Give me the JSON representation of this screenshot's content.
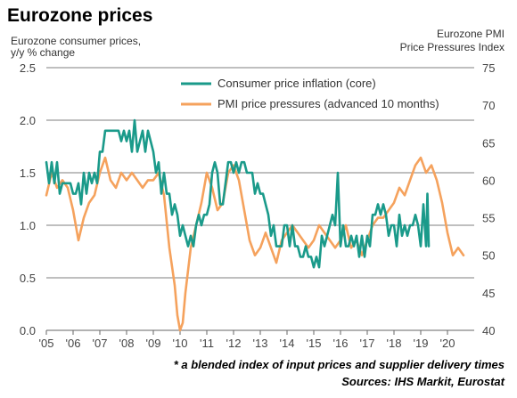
{
  "chart_data": {
    "type": "line",
    "title": "Eurozone prices",
    "left_axis_label": [
      "Eurozone consumer prices,",
      "y/y % change"
    ],
    "right_axis_label": [
      "Eurozone PMI",
      "Price Pressures Index"
    ],
    "left_ylim": [
      0.0,
      2.5
    ],
    "left_ticks": [
      "0.0",
      "0.5",
      "1.0",
      "1.5",
      "2.0",
      "2.5"
    ],
    "right_ylim": [
      40,
      75
    ],
    "right_ticks": [
      "40",
      "45",
      "50",
      "55",
      "60",
      "65",
      "70",
      "75"
    ],
    "xlim": [
      2005,
      2021
    ],
    "x_ticks": [
      "'05",
      "'06",
      "'07",
      "'08",
      "'09",
      "'10",
      "'11",
      "'12",
      "'13",
      "'14",
      "'15",
      "'16",
      "'17",
      "'18",
      "'19",
      "'20"
    ],
    "grid": true,
    "legend_position": "top-right",
    "colors": {
      "cpi": "#1a9a8a",
      "pmi": "#f5a25d"
    },
    "series": [
      {
        "name": "Consumer price inflation (core)",
        "axis": "left",
        "points": [
          [
            2005.0,
            1.6
          ],
          [
            2005.1,
            1.4
          ],
          [
            2005.2,
            1.6
          ],
          [
            2005.3,
            1.4
          ],
          [
            2005.4,
            1.6
          ],
          [
            2005.5,
            1.3
          ],
          [
            2005.6,
            1.4
          ],
          [
            2005.7,
            1.4
          ],
          [
            2005.8,
            1.4
          ],
          [
            2005.9,
            1.4
          ],
          [
            2006.0,
            1.3
          ],
          [
            2006.1,
            1.3
          ],
          [
            2006.2,
            1.4
          ],
          [
            2006.3,
            1.2
          ],
          [
            2006.4,
            1.5
          ],
          [
            2006.5,
            1.3
          ],
          [
            2006.6,
            1.5
          ],
          [
            2006.7,
            1.4
          ],
          [
            2006.8,
            1.5
          ],
          [
            2006.9,
            1.4
          ],
          [
            2007.0,
            1.7
          ],
          [
            2007.1,
            1.7
          ],
          [
            2007.2,
            1.9
          ],
          [
            2007.3,
            1.9
          ],
          [
            2007.4,
            1.9
          ],
          [
            2007.5,
            1.9
          ],
          [
            2007.6,
            1.9
          ],
          [
            2007.7,
            1.9
          ],
          [
            2007.8,
            1.8
          ],
          [
            2007.9,
            1.9
          ],
          [
            2008.0,
            1.8
          ],
          [
            2008.1,
            1.9
          ],
          [
            2008.2,
            1.7
          ],
          [
            2008.3,
            2.0
          ],
          [
            2008.4,
            1.7
          ],
          [
            2008.5,
            1.8
          ],
          [
            2008.6,
            1.9
          ],
          [
            2008.7,
            1.7
          ],
          [
            2008.8,
            1.9
          ],
          [
            2008.9,
            1.8
          ],
          [
            2009.0,
            1.7
          ],
          [
            2009.1,
            1.5
          ],
          [
            2009.2,
            1.6
          ],
          [
            2009.3,
            1.3
          ],
          [
            2009.4,
            1.5
          ],
          [
            2009.5,
            1.3
          ],
          [
            2009.6,
            1.3
          ],
          [
            2009.7,
            1.1
          ],
          [
            2009.8,
            1.2
          ],
          [
            2009.9,
            1.1
          ],
          [
            2010.0,
            0.9
          ],
          [
            2010.1,
            1.0
          ],
          [
            2010.2,
            0.9
          ],
          [
            2010.3,
            0.8
          ],
          [
            2010.4,
            0.9
          ],
          [
            2010.5,
            0.8
          ],
          [
            2010.6,
            1.0
          ],
          [
            2010.7,
            1.1
          ],
          [
            2010.8,
            1.0
          ],
          [
            2010.9,
            1.1
          ],
          [
            2011.0,
            1.1
          ],
          [
            2011.1,
            1.2
          ],
          [
            2011.2,
            1.5
          ],
          [
            2011.3,
            1.6
          ],
          [
            2011.4,
            1.5
          ],
          [
            2011.5,
            1.2
          ],
          [
            2011.6,
            1.2
          ],
          [
            2011.7,
            1.4
          ],
          [
            2011.8,
            1.6
          ],
          [
            2011.9,
            1.6
          ],
          [
            2012.0,
            1.5
          ],
          [
            2012.1,
            1.6
          ],
          [
            2012.2,
            1.5
          ],
          [
            2012.3,
            1.6
          ],
          [
            2012.4,
            1.6
          ],
          [
            2012.5,
            1.5
          ],
          [
            2012.6,
            1.5
          ],
          [
            2012.7,
            1.5
          ],
          [
            2012.8,
            1.3
          ],
          [
            2012.9,
            1.4
          ],
          [
            2013.0,
            1.3
          ],
          [
            2013.1,
            1.3
          ],
          [
            2013.2,
            1.2
          ],
          [
            2013.3,
            1.1
          ],
          [
            2013.4,
            0.9
          ],
          [
            2013.5,
            1.0
          ],
          [
            2013.6,
            0.8
          ],
          [
            2013.7,
            0.8
          ],
          [
            2013.8,
            0.8
          ],
          [
            2013.9,
            1.0
          ],
          [
            2014.0,
            1.0
          ],
          [
            2014.1,
            0.8
          ],
          [
            2014.2,
            1.0
          ],
          [
            2014.3,
            0.8
          ],
          [
            2014.4,
            0.8
          ],
          [
            2014.5,
            0.7
          ],
          [
            2014.6,
            0.7
          ],
          [
            2014.7,
            0.8
          ],
          [
            2014.8,
            0.7
          ],
          [
            2014.9,
            0.7
          ],
          [
            2015.0,
            0.6
          ],
          [
            2015.1,
            0.7
          ],
          [
            2015.2,
            0.6
          ],
          [
            2015.3,
            0.9
          ],
          [
            2015.4,
            0.8
          ],
          [
            2015.5,
            0.9
          ],
          [
            2015.6,
            1.0
          ],
          [
            2015.7,
            1.1
          ],
          [
            2015.8,
            1.0
          ],
          [
            2015.9,
            1.5
          ],
          [
            2016.0,
            0.8
          ],
          [
            2016.1,
            1.0
          ],
          [
            2016.2,
            0.8
          ],
          [
            2016.3,
            0.8
          ],
          [
            2016.4,
            0.9
          ],
          [
            2016.5,
            0.8
          ],
          [
            2016.6,
            0.9
          ],
          [
            2016.7,
            0.7
          ],
          [
            2016.8,
            0.9
          ],
          [
            2016.9,
            0.7
          ],
          [
            2017.0,
            0.9
          ],
          [
            2017.1,
            0.8
          ],
          [
            2017.2,
            1.1
          ],
          [
            2017.3,
            1.1
          ],
          [
            2017.4,
            1.2
          ],
          [
            2017.5,
            1.1
          ],
          [
            2017.6,
            1.2
          ],
          [
            2017.7,
            1.1
          ],
          [
            2017.8,
            0.9
          ],
          [
            2017.9,
            1.0
          ],
          [
            2018.0,
            1.0
          ],
          [
            2018.1,
            0.8
          ],
          [
            2018.2,
            1.1
          ],
          [
            2018.3,
            0.9
          ],
          [
            2018.4,
            1.0
          ],
          [
            2018.5,
            0.9
          ],
          [
            2018.6,
            1.0
          ],
          [
            2018.7,
            1.0
          ],
          [
            2018.8,
            1.1
          ],
          [
            2018.9,
            1.0
          ],
          [
            2019.0,
            0.8
          ],
          [
            2019.1,
            1.2
          ],
          [
            2019.2,
            0.8
          ],
          [
            2019.25,
            1.3
          ],
          [
            2019.3,
            0.8
          ]
        ]
      },
      {
        "name": "PMI price pressures (advanced 10 months)",
        "axis": "right",
        "points": [
          [
            2005.0,
            58
          ],
          [
            2005.2,
            61
          ],
          [
            2005.4,
            59
          ],
          [
            2005.6,
            60
          ],
          [
            2005.8,
            59
          ],
          [
            2006.0,
            56
          ],
          [
            2006.2,
            52
          ],
          [
            2006.4,
            55
          ],
          [
            2006.6,
            57
          ],
          [
            2006.8,
            58
          ],
          [
            2007.0,
            61
          ],
          [
            2007.2,
            63
          ],
          [
            2007.4,
            60
          ],
          [
            2007.6,
            59
          ],
          [
            2007.8,
            61
          ],
          [
            2008.0,
            60
          ],
          [
            2008.2,
            61
          ],
          [
            2008.4,
            60
          ],
          [
            2008.6,
            59
          ],
          [
            2008.8,
            60
          ],
          [
            2009.0,
            60
          ],
          [
            2009.2,
            61
          ],
          [
            2009.4,
            58
          ],
          [
            2009.6,
            51
          ],
          [
            2009.8,
            46
          ],
          [
            2009.9,
            42
          ],
          [
            2010.0,
            40
          ],
          [
            2010.1,
            41
          ],
          [
            2010.2,
            45
          ],
          [
            2010.4,
            51
          ],
          [
            2010.6,
            54
          ],
          [
            2010.8,
            57
          ],
          [
            2011.0,
            61
          ],
          [
            2011.2,
            59
          ],
          [
            2011.4,
            56
          ],
          [
            2011.6,
            57
          ],
          [
            2011.8,
            61
          ],
          [
            2012.0,
            62
          ],
          [
            2012.2,
            60
          ],
          [
            2012.4,
            56
          ],
          [
            2012.6,
            52
          ],
          [
            2012.8,
            50
          ],
          [
            2013.0,
            51
          ],
          [
            2013.2,
            53
          ],
          [
            2013.4,
            51
          ],
          [
            2013.6,
            49
          ],
          [
            2013.8,
            52
          ],
          [
            2014.0,
            53
          ],
          [
            2014.2,
            54
          ],
          [
            2014.4,
            53
          ],
          [
            2014.6,
            52
          ],
          [
            2014.8,
            51
          ],
          [
            2015.0,
            52
          ],
          [
            2015.2,
            54
          ],
          [
            2015.4,
            53
          ],
          [
            2015.6,
            52
          ],
          [
            2015.8,
            51
          ],
          [
            2016.0,
            52
          ],
          [
            2016.2,
            54
          ],
          [
            2016.4,
            51
          ],
          [
            2016.6,
            52
          ],
          [
            2016.8,
            50
          ],
          [
            2017.0,
            52
          ],
          [
            2017.2,
            54
          ],
          [
            2017.4,
            55
          ],
          [
            2017.6,
            55
          ],
          [
            2017.8,
            56
          ],
          [
            2018.0,
            57
          ],
          [
            2018.2,
            59
          ],
          [
            2018.4,
            58
          ],
          [
            2018.6,
            60
          ],
          [
            2018.8,
            62
          ],
          [
            2019.0,
            63
          ],
          [
            2019.2,
            61
          ],
          [
            2019.4,
            62
          ],
          [
            2019.6,
            60
          ],
          [
            2019.8,
            57
          ],
          [
            2020.0,
            53
          ],
          [
            2020.2,
            50
          ],
          [
            2020.4,
            51
          ],
          [
            2020.6,
            50
          ]
        ]
      }
    ],
    "footnote": "* a blended index of input prices and supplier delivery times",
    "source": "Sources: IHS Markit, Eurostat"
  }
}
